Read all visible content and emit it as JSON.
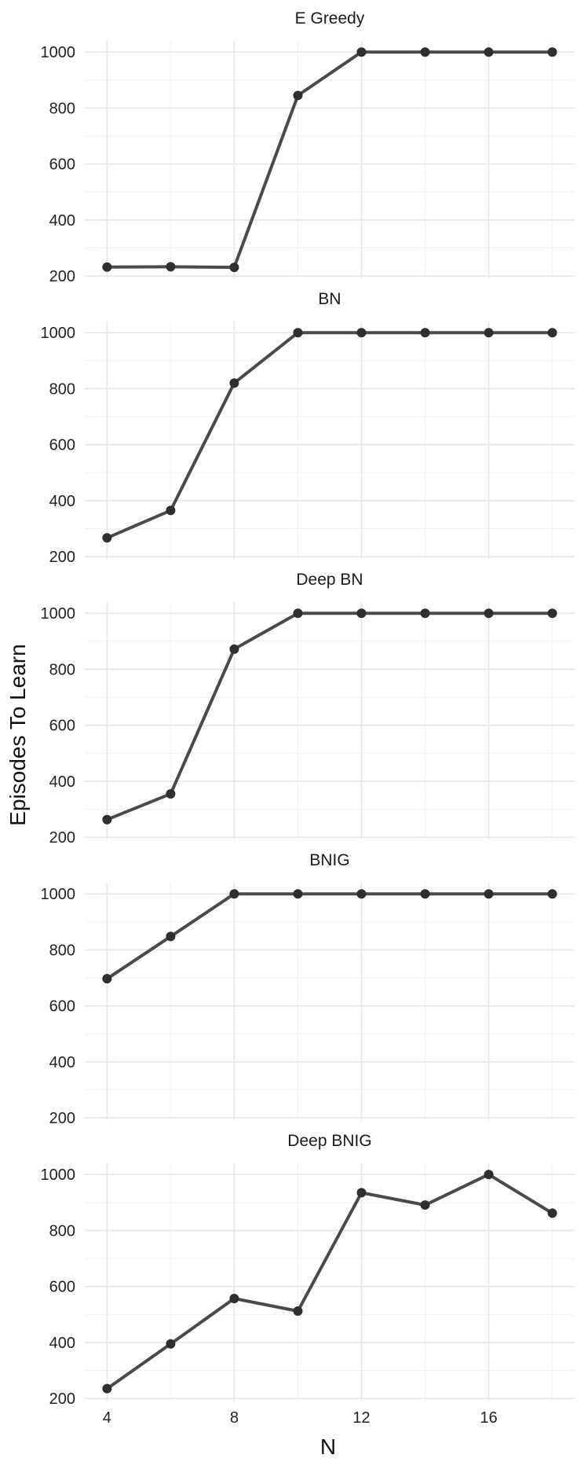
{
  "chart_data": {
    "type": "line",
    "layout": "faceted-vertical",
    "xlabel": "N",
    "ylabel": "Episodes To Learn",
    "x": [
      4,
      6,
      8,
      10,
      12,
      14,
      16,
      18
    ],
    "x_ticks": [
      4,
      8,
      12,
      16
    ],
    "xlim": [
      3.3,
      18.7
    ],
    "y_ticks": [
      200,
      400,
      600,
      800,
      1000
    ],
    "ylim": [
      192,
      1040
    ],
    "grid": true,
    "legend": "none",
    "colors": {
      "line": "#4a4a4a",
      "point": "#2f2f2f",
      "grid": "#e6e6e6"
    },
    "panels": [
      {
        "title": "E Greedy",
        "values": [
          232,
          233,
          231,
          845,
          1000,
          1000,
          1000,
          1000
        ]
      },
      {
        "title": "BN",
        "values": [
          267,
          365,
          820,
          1000,
          1000,
          1000,
          1000,
          1000
        ]
      },
      {
        "title": "Deep BN",
        "values": [
          263,
          355,
          872,
          1000,
          1000,
          1000,
          1000,
          1000
        ]
      },
      {
        "title": "BNIG",
        "values": [
          697,
          848,
          1000,
          1000,
          1000,
          1000,
          1000,
          1000
        ]
      },
      {
        "title": "Deep BNIG",
        "values": [
          235,
          395,
          557,
          512,
          935,
          891,
          1000,
          862
        ]
      }
    ]
  }
}
